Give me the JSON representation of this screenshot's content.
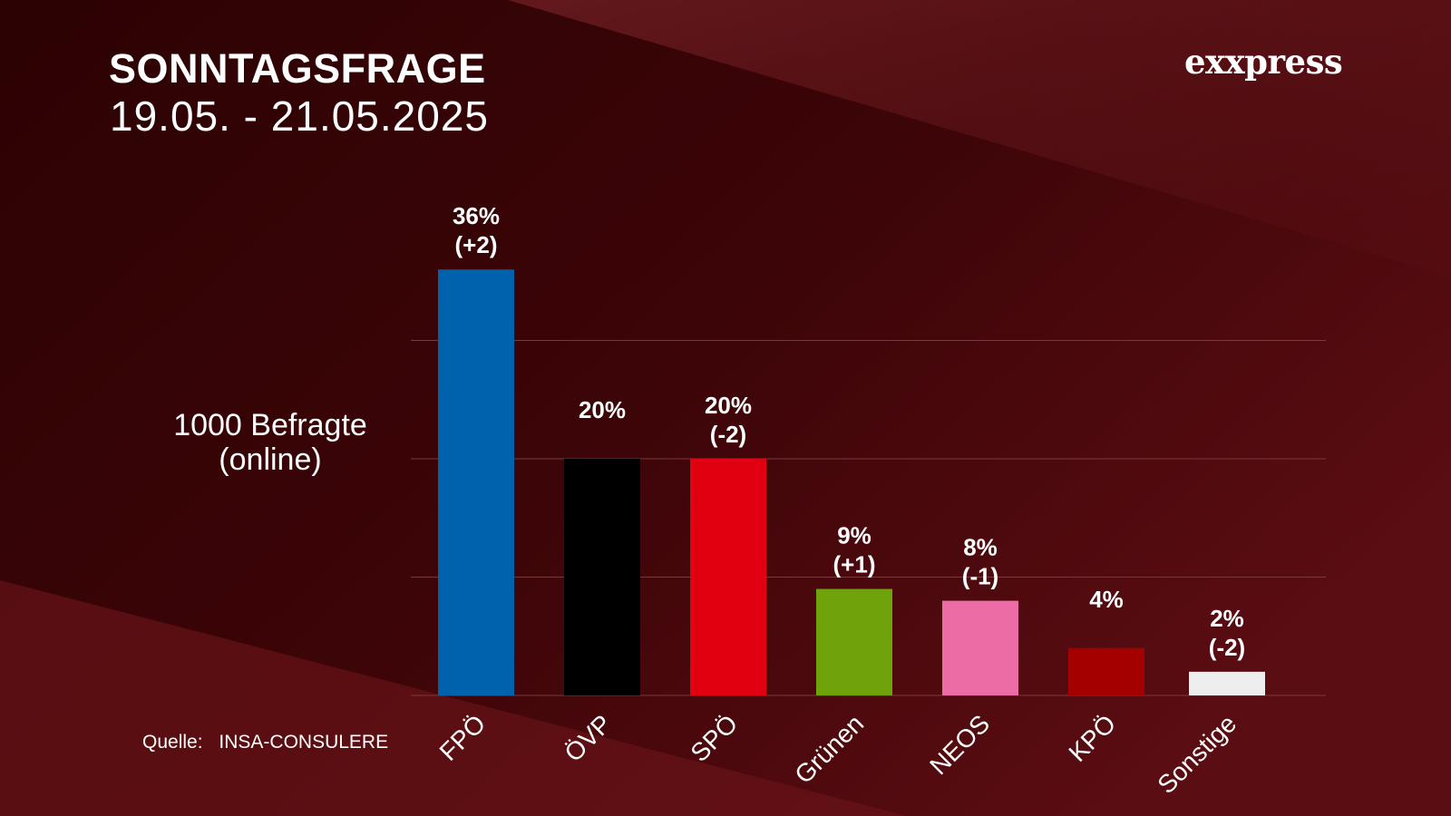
{
  "header": {
    "title": "SONNTAGSFRAGE",
    "subtitle": "19.05. - 21.05.2025",
    "logo": "exxpress"
  },
  "note": {
    "line1": "1000 Befragte",
    "line2": "(online)"
  },
  "source": {
    "label": "Quelle:",
    "value": "INSA-CONSULERE"
  },
  "colors": {
    "background": "#3a0406",
    "band": "#6a1418",
    "gridline": "#7a3a3c"
  },
  "chart_data": {
    "type": "bar",
    "title": "SONNTAGSFRAGE",
    "subtitle": "19.05. - 21.05.2025",
    "categories": [
      "FPÖ",
      "ÖVP",
      "SPÖ",
      "Grünen",
      "NEOS",
      "KPÖ",
      "Sonstige"
    ],
    "values": [
      36,
      20,
      20,
      9,
      8,
      4,
      2
    ],
    "value_labels": [
      "36%",
      "20%",
      "20%",
      "9%",
      "8%",
      "4%",
      "2%"
    ],
    "change_labels": [
      "(+2)",
      "",
      "(-2)",
      "(+1)",
      "(-1)",
      "",
      "(-2)"
    ],
    "colors": [
      "#0061ac",
      "#000000",
      "#e1000f",
      "#6fa30b",
      "#ec6ca6",
      "#a50000",
      "#eeeeee"
    ],
    "ylim": [
      0,
      40
    ],
    "gridlines": [
      10,
      20,
      30
    ],
    "grid": true,
    "legend": "none"
  }
}
